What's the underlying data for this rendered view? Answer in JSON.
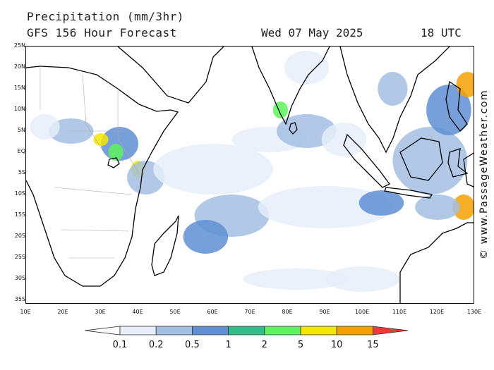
{
  "header": {
    "title_line1": "Precipitation (mm/3hr)",
    "title_line2": "GFS 156 Hour Forecast",
    "date": "Wed 07 May 2025",
    "time": "18 UTC"
  },
  "watermark": "© www.PassageWeather.com",
  "map": {
    "extent": {
      "lon_min": 10,
      "lon_max": 130,
      "lat_min": -36,
      "lat_max": 25
    },
    "lat_ticks": [
      {
        "value": 25,
        "label": "25N"
      },
      {
        "value": 20,
        "label": "20N"
      },
      {
        "value": 15,
        "label": "15N"
      },
      {
        "value": 10,
        "label": "10N"
      },
      {
        "value": 5,
        "label": "5N"
      },
      {
        "value": 0,
        "label": "EQ"
      },
      {
        "value": -5,
        "label": "5S"
      },
      {
        "value": -10,
        "label": "10S"
      },
      {
        "value": -15,
        "label": "15S"
      },
      {
        "value": -20,
        "label": "20S"
      },
      {
        "value": -25,
        "label": "25S"
      },
      {
        "value": -30,
        "label": "30S"
      },
      {
        "value": -35,
        "label": "35S"
      }
    ],
    "lon_ticks": [
      {
        "value": 10,
        "label": "10E"
      },
      {
        "value": 20,
        "label": "20E"
      },
      {
        "value": 30,
        "label": "30E"
      },
      {
        "value": 40,
        "label": "40E"
      },
      {
        "value": 50,
        "label": "50E"
      },
      {
        "value": 60,
        "label": "60E"
      },
      {
        "value": 70,
        "label": "70E"
      },
      {
        "value": 80,
        "label": "80E"
      },
      {
        "value": 90,
        "label": "90E"
      },
      {
        "value": 100,
        "label": "100E"
      },
      {
        "value": 110,
        "label": "110E"
      },
      {
        "value": 120,
        "label": "120E"
      },
      {
        "value": 130,
        "label": "130E"
      }
    ],
    "precip_areas": [
      {
        "lon": 35,
        "lat": 2,
        "rx": 5,
        "ry": 4,
        "level": 3
      },
      {
        "lon": 34,
        "lat": 0,
        "rx": 2,
        "ry": 2,
        "level": 5
      },
      {
        "lon": 30,
        "lat": 3,
        "rx": 2,
        "ry": 1.5,
        "level": 6
      },
      {
        "lon": 22,
        "lat": 5,
        "rx": 6,
        "ry": 3,
        "level": 2
      },
      {
        "lon": 15,
        "lat": 6,
        "rx": 4,
        "ry": 3,
        "level": 1
      },
      {
        "lon": 40,
        "lat": -4,
        "rx": 2,
        "ry": 2,
        "level": 6
      },
      {
        "lon": 42,
        "lat": -6,
        "rx": 5,
        "ry": 4,
        "level": 2
      },
      {
        "lon": 60,
        "lat": -4,
        "rx": 16,
        "ry": 6,
        "level": 1
      },
      {
        "lon": 75,
        "lat": 3,
        "rx": 10,
        "ry": 3,
        "level": 1
      },
      {
        "lon": 85,
        "lat": 5,
        "rx": 8,
        "ry": 4,
        "level": 2
      },
      {
        "lon": 95,
        "lat": 3,
        "rx": 6,
        "ry": 4,
        "level": 1
      },
      {
        "lon": 65,
        "lat": -15,
        "rx": 10,
        "ry": 5,
        "level": 2
      },
      {
        "lon": 58,
        "lat": -20,
        "rx": 6,
        "ry": 4,
        "level": 3
      },
      {
        "lon": 90,
        "lat": -13,
        "rx": 18,
        "ry": 5,
        "level": 1
      },
      {
        "lon": 105,
        "lat": -12,
        "rx": 6,
        "ry": 3,
        "level": 3
      },
      {
        "lon": 118,
        "lat": -2,
        "rx": 10,
        "ry": 8,
        "level": 2
      },
      {
        "lon": 123,
        "lat": 10,
        "rx": 6,
        "ry": 6,
        "level": 3
      },
      {
        "lon": 128,
        "lat": 16,
        "rx": 3,
        "ry": 3,
        "level": 7
      },
      {
        "lon": 108,
        "lat": 15,
        "rx": 4,
        "ry": 4,
        "level": 2
      },
      {
        "lon": 85,
        "lat": 20,
        "rx": 6,
        "ry": 4,
        "level": 1
      },
      {
        "lon": 78,
        "lat": 10,
        "rx": 2,
        "ry": 2,
        "level": 5
      },
      {
        "lon": 127,
        "lat": -13,
        "rx": 3,
        "ry": 3,
        "level": 7
      },
      {
        "lon": 82,
        "lat": -30,
        "rx": 14,
        "ry": 2.5,
        "level": 1
      },
      {
        "lon": 100,
        "lat": -30,
        "rx": 10,
        "ry": 3,
        "level": 1
      },
      {
        "lon": 120,
        "lat": -13,
        "rx": 6,
        "ry": 3,
        "level": 2
      }
    ]
  },
  "legend": {
    "colors": [
      "#ffffff",
      "#e6eef9",
      "#a3bfe3",
      "#5f8fd4",
      "#2fbf8a",
      "#5df35c",
      "#f5e600",
      "#f5a100",
      "#f03a3a"
    ],
    "labels": [
      "0.1",
      "0.2",
      "0.5",
      "1",
      "2",
      "5",
      "10",
      "15"
    ]
  }
}
